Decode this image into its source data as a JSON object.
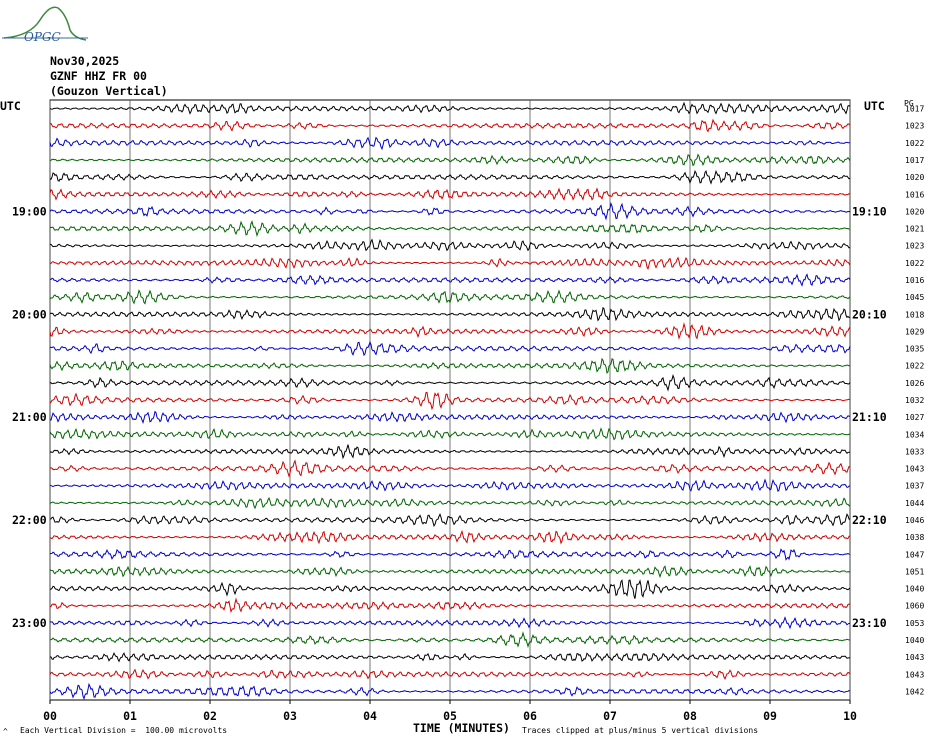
{
  "header": {
    "logo_text": "OPGC",
    "date": "Nov30,2025",
    "station": "GZNF HHZ FR 00",
    "location": "(Gouzon Vertical)"
  },
  "chart_data": {
    "type": "line",
    "title": "Nov30,2025",
    "left_axis_title": "UTC",
    "right_axis_title": "UTC",
    "right_column_title": "PG",
    "xlabel": "TIME (MINUTES)",
    "xlim": [
      0,
      10
    ],
    "x_ticks": [
      "00",
      "01",
      "02",
      "03",
      "04",
      "05",
      "06",
      "07",
      "08",
      "09",
      "10"
    ],
    "left_hour_labels": [
      {
        "row": 6,
        "label": "19:00"
      },
      {
        "row": 12,
        "label": "20:00"
      },
      {
        "row": 18,
        "label": "21:00"
      },
      {
        "row": 24,
        "label": "22:00"
      },
      {
        "row": 30,
        "label": "23:00"
      }
    ],
    "right_hour_labels": [
      {
        "row": 6,
        "label": "19:10"
      },
      {
        "row": 12,
        "label": "20:10"
      },
      {
        "row": 18,
        "label": "21:10"
      },
      {
        "row": 24,
        "label": "22:10"
      },
      {
        "row": 30,
        "label": "23:10"
      }
    ],
    "trace_colors": [
      "#000000",
      "#d00000",
      "#0000c8",
      "#006400"
    ],
    "trace_values": [
      1017,
      1023,
      1022,
      1017,
      1020,
      1016,
      1020,
      1021,
      1023,
      1022,
      1016,
      1045,
      1018,
      1029,
      1035,
      1022,
      1026,
      1032,
      1027,
      1034,
      1033,
      1043,
      1037,
      1044,
      1046,
      1038,
      1047,
      1051,
      1040,
      1060,
      1053,
      1040,
      1043,
      1043,
      1042
    ]
  },
  "footer": {
    "scale_note": "Each Vertical Division =  100.00 microvolts",
    "clip_note": "Traces clipped at plus/minus 5 vertical divisions",
    "corner_mark": "^"
  }
}
